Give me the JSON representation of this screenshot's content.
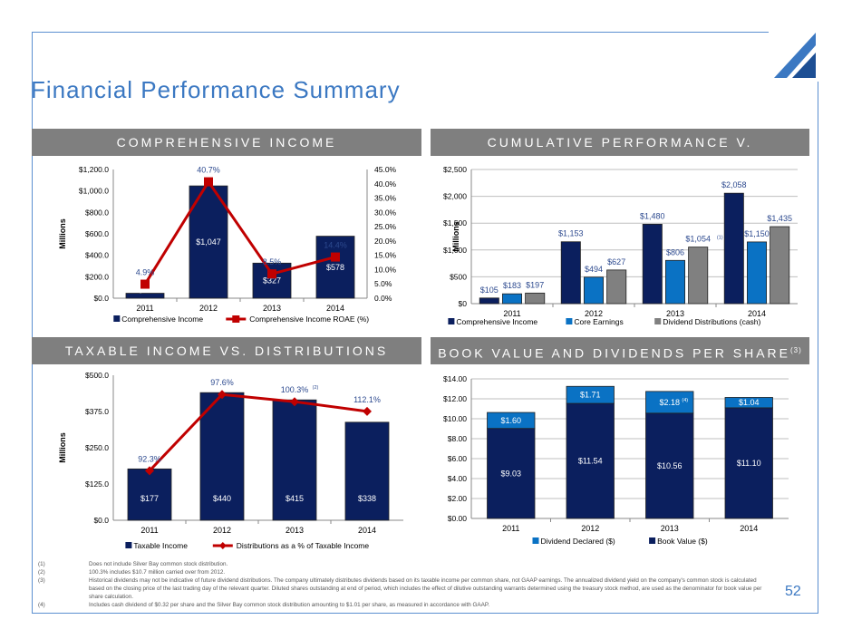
{
  "title": "Financial Performance Summary",
  "page_number": "52",
  "sections": {
    "top_left": "COMPREHENSIVE INCOME",
    "top_right": "CUMULATIVE PERFORMANCE V. DISTRIBUTIONS",
    "bottom_left": "TAXABLE INCOME VS. DISTRIBUTIONS",
    "bottom_right": "BOOK VALUE AND DIVIDENDS PER SHARE",
    "bottom_right_note": "(3)"
  },
  "footnotes": [
    {
      "n": "(1)",
      "text": "Does not include Silver Bay common stock distribution."
    },
    {
      "n": "(2)",
      "text": "100.3% includes $10.7 million carried over from 2012."
    },
    {
      "n": "(3)",
      "text": "Historical dividends may not be indicative of future dividend distributions.  The company ultimately distributes dividends based on its taxable income per common share, not GAAP earnings. The annualized dividend yield on the company's common stock is calculated based on the closing price of the last trading day of the relevant quarter.  Diluted shares outstanding at end of period, which includes the effect of dilutive outstanding warrants determined using the treasury stock method, are used as the denominator for book value per share calculation."
    },
    {
      "n": "(4)",
      "text": "Includes cash dividend of $0.32 per share and the Silver Bay common stock distribution amounting to $1.01 per share, as measured in accordance with GAAP."
    }
  ],
  "colors": {
    "navy": "#0b1f5e",
    "blue": "#0a72c4",
    "gray": "#808080",
    "red": "#c00000",
    "label": "#2d4a8f",
    "accent": "#3b78c2"
  },
  "chart_data": [
    {
      "type": "bar",
      "ylabel": "Millions",
      "categories": [
        "2011",
        "2012",
        "2013",
        "2014"
      ],
      "ylim": [
        0,
        1200
      ],
      "yticks": [
        "$0.0",
        "$200.0",
        "$400.0",
        "$600.0",
        "$800.0",
        "$1,000.0",
        "$1,200.0"
      ],
      "y2lim": [
        0,
        45
      ],
      "y2ticks": [
        "0.0%",
        "5.0%",
        "10.0%",
        "15.0%",
        "20.0%",
        "25.0%",
        "30.0%",
        "35.0%",
        "40.0%",
        "45.0%"
      ],
      "grid": false,
      "legend": "bottom",
      "series": [
        {
          "name": "Comprehensive Income",
          "kind": "bar",
          "values": [
            46,
            1047,
            327,
            578
          ],
          "labels": [
            "$46",
            "$1,047",
            "$327",
            "$578"
          ]
        },
        {
          "name": "Comprehensive Income ROAE (%)",
          "kind": "line",
          "axis": "right",
          "values": [
            4.9,
            40.7,
            8.5,
            14.4
          ],
          "labels": [
            "4.9%",
            "40.7%",
            "8.5%",
            "14.4%"
          ]
        }
      ]
    },
    {
      "type": "bar",
      "ylabel": "Millions",
      "categories": [
        "2011",
        "2012",
        "2013",
        "2014"
      ],
      "ylim": [
        0,
        2500
      ],
      "yticks": [
        "$0",
        "$500",
        "$1,000",
        "$1,500",
        "$2,000",
        "$2,500"
      ],
      "grid": true,
      "legend": "bottom",
      "series": [
        {
          "name": "Comprehensive Income",
          "values": [
            105,
            1153,
            1480,
            2058
          ],
          "labels": [
            "$105",
            "$1,153",
            "$1,480",
            "$2,058"
          ]
        },
        {
          "name": "Core Earnings",
          "values": [
            183,
            494,
            806,
            1150
          ],
          "labels": [
            "$183",
            "$494",
            "$806",
            "$1,150"
          ]
        },
        {
          "name": "Dividend Distributions (cash)",
          "values": [
            197,
            627,
            1054,
            1435
          ],
          "labels": [
            "$197",
            "$627",
            "$1,054",
            "$1,435"
          ],
          "notes": [
            "",
            "",
            "(1)",
            ""
          ]
        }
      ]
    },
    {
      "type": "bar",
      "ylabel": "Millions",
      "categories": [
        "2011",
        "2012",
        "2013",
        "2014"
      ],
      "ylim": [
        0,
        500
      ],
      "yticks": [
        "$0.0",
        "$125.0",
        "$250.0",
        "$375.0",
        "$500.0"
      ],
      "grid": false,
      "legend": "bottom",
      "series": [
        {
          "name": "Taxable Income",
          "kind": "bar",
          "values": [
            177,
            440,
            415,
            338
          ],
          "labels": [
            "$177",
            "$440",
            "$415",
            "$338"
          ]
        },
        {
          "name": "Distributions as a % of Taxable Income",
          "kind": "line",
          "values": [
            92.3,
            97.6,
            100.3,
            112.1
          ],
          "labels": [
            "92.3%",
            "97.6%",
            "100.3%",
            "112.1%"
          ],
          "notes": [
            "",
            "",
            "(2)",
            ""
          ]
        }
      ]
    },
    {
      "type": "bar",
      "stacked": true,
      "categories": [
        "2011",
        "2012",
        "2013",
        "2014"
      ],
      "ylim": [
        0,
        14
      ],
      "yticks": [
        "$0.00",
        "$2.00",
        "$4.00",
        "$6.00",
        "$8.00",
        "$10.00",
        "$12.00",
        "$14.00"
      ],
      "grid": true,
      "legend": "bottom",
      "series": [
        {
          "name": "Dividend Declared ($)",
          "values": [
            1.6,
            1.71,
            2.18,
            1.04
          ],
          "labels": [
            "$1.60",
            "$1.71",
            "$2.18",
            "$1.04"
          ],
          "notes": [
            "",
            "",
            "(4)",
            ""
          ]
        },
        {
          "name": "Book Value ($)",
          "values": [
            9.03,
            11.54,
            10.56,
            11.1
          ],
          "labels": [
            "$9.03",
            "$11.54",
            "$10.56",
            "$11.10"
          ]
        }
      ]
    }
  ]
}
